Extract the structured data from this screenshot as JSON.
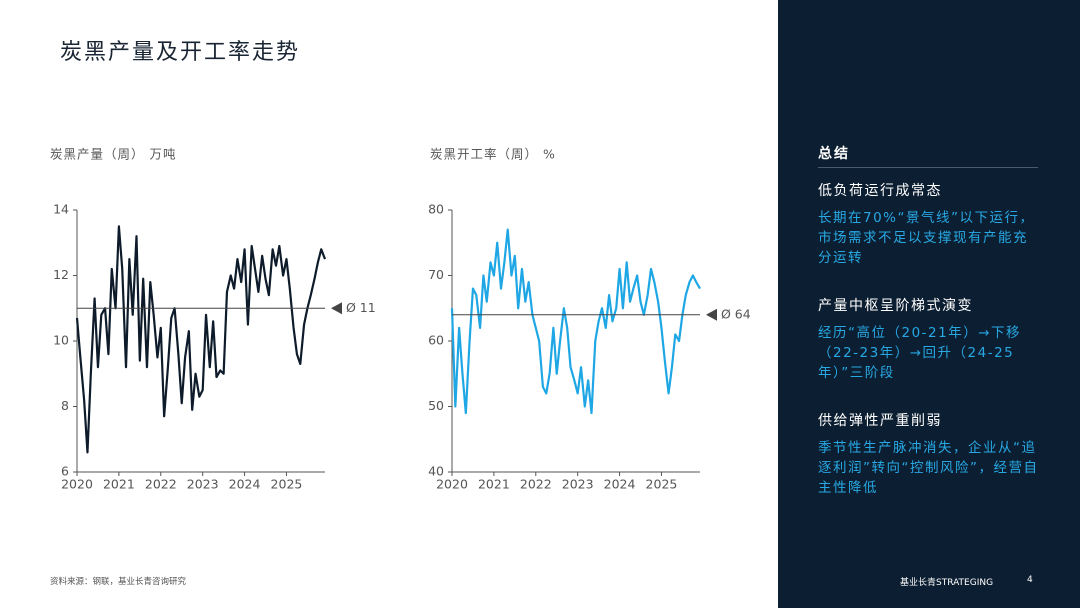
{
  "title": "炭黑产量及开工率走势",
  "chart_data": [
    {
      "type": "line",
      "y_label": "炭黑产量（周） 万吨",
      "color": "#0d1b2a",
      "x": [
        2020,
        2020.08,
        2020.17,
        2020.25,
        2020.33,
        2020.42,
        2020.5,
        2020.58,
        2020.67,
        2020.75,
        2020.83,
        2020.92,
        2021,
        2021.08,
        2021.17,
        2021.25,
        2021.33,
        2021.42,
        2021.5,
        2021.58,
        2021.67,
        2021.75,
        2021.83,
        2021.92,
        2022,
        2022.08,
        2022.17,
        2022.25,
        2022.33,
        2022.42,
        2022.5,
        2022.58,
        2022.67,
        2022.75,
        2022.83,
        2022.92,
        2023,
        2023.08,
        2023.17,
        2023.25,
        2023.33,
        2023.42,
        2023.5,
        2023.58,
        2023.67,
        2023.75,
        2023.83,
        2023.92,
        2024,
        2024.08,
        2024.17,
        2024.25,
        2024.33,
        2024.42,
        2024.5,
        2024.58,
        2024.67,
        2024.75,
        2024.83,
        2024.92,
        2025,
        2025.08,
        2025.17,
        2025.25,
        2025.33,
        2025.42,
        2025.5,
        2025.58,
        2025.67,
        2025.75,
        2025.83,
        2025.92
      ],
      "values": [
        10.7,
        9.5,
        8.2,
        6.6,
        9.0,
        11.3,
        9.2,
        10.8,
        11.0,
        9.6,
        12.2,
        11.0,
        13.5,
        12.2,
        9.2,
        12.5,
        10.8,
        13.2,
        9.4,
        11.9,
        9.2,
        11.8,
        10.8,
        9.5,
        10.4,
        7.7,
        9.2,
        10.7,
        11.0,
        9.6,
        8.1,
        9.5,
        10.3,
        7.9,
        9.0,
        8.3,
        8.5,
        10.8,
        9.2,
        10.6,
        8.9,
        9.1,
        9.0,
        11.5,
        12.0,
        11.6,
        12.5,
        11.8,
        12.8,
        10.5,
        12.9,
        12.2,
        11.5,
        12.6,
        11.9,
        11.4,
        12.8,
        12.3,
        12.9,
        12.0,
        12.5,
        11.6,
        10.4,
        9.6,
        9.3,
        10.5,
        11.0,
        11.4,
        11.9,
        12.4,
        12.8,
        12.5
      ],
      "xlim": [
        2020,
        2025.92
      ],
      "xticks": [
        2020,
        2021,
        2022,
        2023,
        2024,
        2025
      ],
      "ylim": [
        6,
        14
      ],
      "yticks": [
        6,
        8,
        10,
        12,
        14
      ],
      "reference_line": {
        "value": 11,
        "label": "Ø 11"
      }
    },
    {
      "type": "line",
      "y_label": "炭黑开工率（周） %",
      "color": "#1ea7e4",
      "x": [
        2020,
        2020.08,
        2020.17,
        2020.25,
        2020.33,
        2020.42,
        2020.5,
        2020.58,
        2020.67,
        2020.75,
        2020.83,
        2020.92,
        2021,
        2021.08,
        2021.17,
        2021.25,
        2021.33,
        2021.42,
        2021.5,
        2021.58,
        2021.67,
        2021.75,
        2021.83,
        2021.92,
        2022,
        2022.08,
        2022.17,
        2022.25,
        2022.33,
        2022.42,
        2022.5,
        2022.58,
        2022.67,
        2022.75,
        2022.83,
        2022.92,
        2023,
        2023.08,
        2023.17,
        2023.25,
        2023.33,
        2023.42,
        2023.5,
        2023.58,
        2023.67,
        2023.75,
        2023.83,
        2023.92,
        2024,
        2024.08,
        2024.17,
        2024.25,
        2024.33,
        2024.42,
        2024.5,
        2024.58,
        2024.67,
        2024.75,
        2024.83,
        2024.92,
        2025,
        2025.08,
        2025.17,
        2025.25,
        2025.33,
        2025.42,
        2025.5,
        2025.58,
        2025.67,
        2025.75,
        2025.83,
        2025.92
      ],
      "values": [
        65,
        50,
        62,
        55,
        49,
        60,
        68,
        67,
        62,
        70,
        66,
        72,
        70,
        75,
        68,
        72,
        77,
        70,
        73,
        65,
        71,
        66,
        69,
        64,
        62,
        60,
        53,
        52,
        55,
        62,
        55,
        60,
        65,
        62,
        56,
        54,
        52,
        56,
        50,
        54,
        49,
        60,
        63,
        65,
        62,
        67,
        63,
        65,
        71,
        65,
        72,
        66,
        68,
        70,
        66,
        64,
        67,
        71,
        69,
        66,
        62,
        57,
        52,
        56,
        61,
        60,
        64,
        67,
        69,
        70,
        69,
        68
      ],
      "xlim": [
        2020,
        2025.92
      ],
      "xticks": [
        2020,
        2021,
        2022,
        2023,
        2024,
        2025
      ],
      "ylim": [
        40,
        80
      ],
      "yticks": [
        40,
        50,
        60,
        70,
        80
      ],
      "reference_line": {
        "value": 64,
        "label": "Ø 64"
      }
    }
  ],
  "sidebar": {
    "title": "总结",
    "items": [
      {
        "heading": "低负荷运行成常态",
        "text": "长期在70%“景气线”以下运行，市场需求不足以支撑现有产能充分运转"
      },
      {
        "heading": "产量中枢呈阶梯式演变",
        "text": "经历“高位（20-21年）→下移（22-23年）→回升（24-25年）”三阶段"
      },
      {
        "heading": "供给弹性严重削弱",
        "text": "季节性生产脉冲消失，企业从“追逐利润”转向“控制风险”，经营自主性降低"
      }
    ]
  },
  "footer": {
    "source": "资料来源：钢联，基业长青咨询研究",
    "brand": "基业长青STRATEGING",
    "page": "4"
  }
}
